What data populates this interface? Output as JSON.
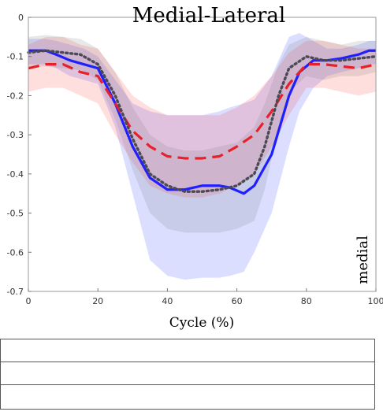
{
  "chart_data": {
    "type": "line",
    "title": "Medial-Lateral",
    "xlabel": "Cycle (%)",
    "ylabel": "",
    "xlim": [
      0,
      100
    ],
    "ylim": [
      -0.7,
      0
    ],
    "xticks": [
      0,
      20,
      40,
      60,
      80,
      100
    ],
    "xtick_labels": [
      "0",
      "20",
      "40",
      "60",
      "80",
      "100"
    ],
    "yticks": [
      0,
      -0.1,
      -0.2,
      -0.3,
      -0.4,
      -0.5,
      -0.6,
      -0.7
    ],
    "ytick_labels": [
      "0",
      "-0.1",
      "-0.2",
      "-0.3",
      "-0.4",
      "-0.5",
      "-0.6",
      "-0.7"
    ],
    "grid": false,
    "annotations": [
      "medial"
    ],
    "series": [
      {
        "style": "solid",
        "color": "#1f1fff",
        "x": [
          0,
          5,
          8,
          12,
          16,
          20,
          25,
          30,
          35,
          40,
          45,
          50,
          55,
          58,
          62,
          65,
          70,
          75,
          78,
          82,
          86,
          90,
          95,
          98,
          100
        ],
        "y": [
          -0.085,
          -0.085,
          -0.095,
          -0.11,
          -0.12,
          -0.13,
          -0.22,
          -0.33,
          -0.41,
          -0.44,
          -0.44,
          -0.43,
          -0.43,
          -0.435,
          -0.45,
          -0.43,
          -0.35,
          -0.2,
          -0.14,
          -0.11,
          -0.11,
          -0.105,
          -0.095,
          -0.085,
          -0.085
        ],
        "band_upper": [
          -0.055,
          -0.055,
          -0.06,
          -0.07,
          -0.08,
          -0.1,
          -0.16,
          -0.22,
          -0.24,
          -0.25,
          -0.25,
          -0.25,
          -0.24,
          -0.23,
          -0.22,
          -0.21,
          -0.15,
          -0.05,
          -0.04,
          -0.06,
          -0.08,
          -0.08,
          -0.07,
          -0.06,
          -0.06
        ],
        "band_lower": [
          -0.12,
          -0.12,
          -0.13,
          -0.15,
          -0.16,
          -0.17,
          -0.28,
          -0.45,
          -0.62,
          -0.66,
          -0.67,
          -0.665,
          -0.665,
          -0.66,
          -0.65,
          -0.6,
          -0.5,
          -0.33,
          -0.24,
          -0.18,
          -0.15,
          -0.14,
          -0.13,
          -0.12,
          -0.12
        ]
      },
      {
        "style": "dashed",
        "color": "#e8202a",
        "x": [
          0,
          5,
          10,
          15,
          20,
          25,
          30,
          35,
          40,
          45,
          50,
          55,
          60,
          65,
          70,
          75,
          80,
          85,
          90,
          95,
          100
        ],
        "y": [
          -0.13,
          -0.12,
          -0.12,
          -0.14,
          -0.15,
          -0.22,
          -0.29,
          -0.33,
          -0.355,
          -0.36,
          -0.36,
          -0.355,
          -0.33,
          -0.3,
          -0.24,
          -0.17,
          -0.12,
          -0.12,
          -0.125,
          -0.13,
          -0.12
        ],
        "band_upper": [
          -0.07,
          -0.05,
          -0.05,
          -0.07,
          -0.08,
          -0.14,
          -0.2,
          -0.23,
          -0.25,
          -0.25,
          -0.25,
          -0.25,
          -0.23,
          -0.2,
          -0.15,
          -0.09,
          -0.06,
          -0.06,
          -0.07,
          -0.08,
          -0.08
        ],
        "band_lower": [
          -0.19,
          -0.18,
          -0.18,
          -0.2,
          -0.22,
          -0.3,
          -0.37,
          -0.43,
          -0.45,
          -0.46,
          -0.46,
          -0.45,
          -0.43,
          -0.4,
          -0.33,
          -0.25,
          -0.18,
          -0.18,
          -0.19,
          -0.2,
          -0.19
        ]
      },
      {
        "style": "dotted",
        "color": "#4a4a55",
        "x": [
          0,
          5,
          10,
          15,
          20,
          25,
          30,
          35,
          40,
          45,
          50,
          55,
          60,
          65,
          68,
          72,
          75,
          80,
          85,
          90,
          95,
          100
        ],
        "y": [
          -0.09,
          -0.085,
          -0.09,
          -0.095,
          -0.12,
          -0.2,
          -0.31,
          -0.4,
          -0.43,
          -0.445,
          -0.445,
          -0.44,
          -0.43,
          -0.4,
          -0.33,
          -0.2,
          -0.13,
          -0.1,
          -0.11,
          -0.11,
          -0.105,
          -0.1
        ],
        "band_upper": [
          -0.05,
          -0.045,
          -0.05,
          -0.055,
          -0.08,
          -0.14,
          -0.23,
          -0.3,
          -0.33,
          -0.34,
          -0.34,
          -0.33,
          -0.32,
          -0.28,
          -0.22,
          -0.12,
          -0.07,
          -0.05,
          -0.06,
          -0.07,
          -0.06,
          -0.06
        ],
        "band_lower": [
          -0.13,
          -0.125,
          -0.13,
          -0.135,
          -0.16,
          -0.26,
          -0.39,
          -0.5,
          -0.54,
          -0.55,
          -0.55,
          -0.55,
          -0.54,
          -0.52,
          -0.44,
          -0.28,
          -0.19,
          -0.15,
          -0.16,
          -0.15,
          -0.15,
          -0.14
        ]
      }
    ]
  }
}
